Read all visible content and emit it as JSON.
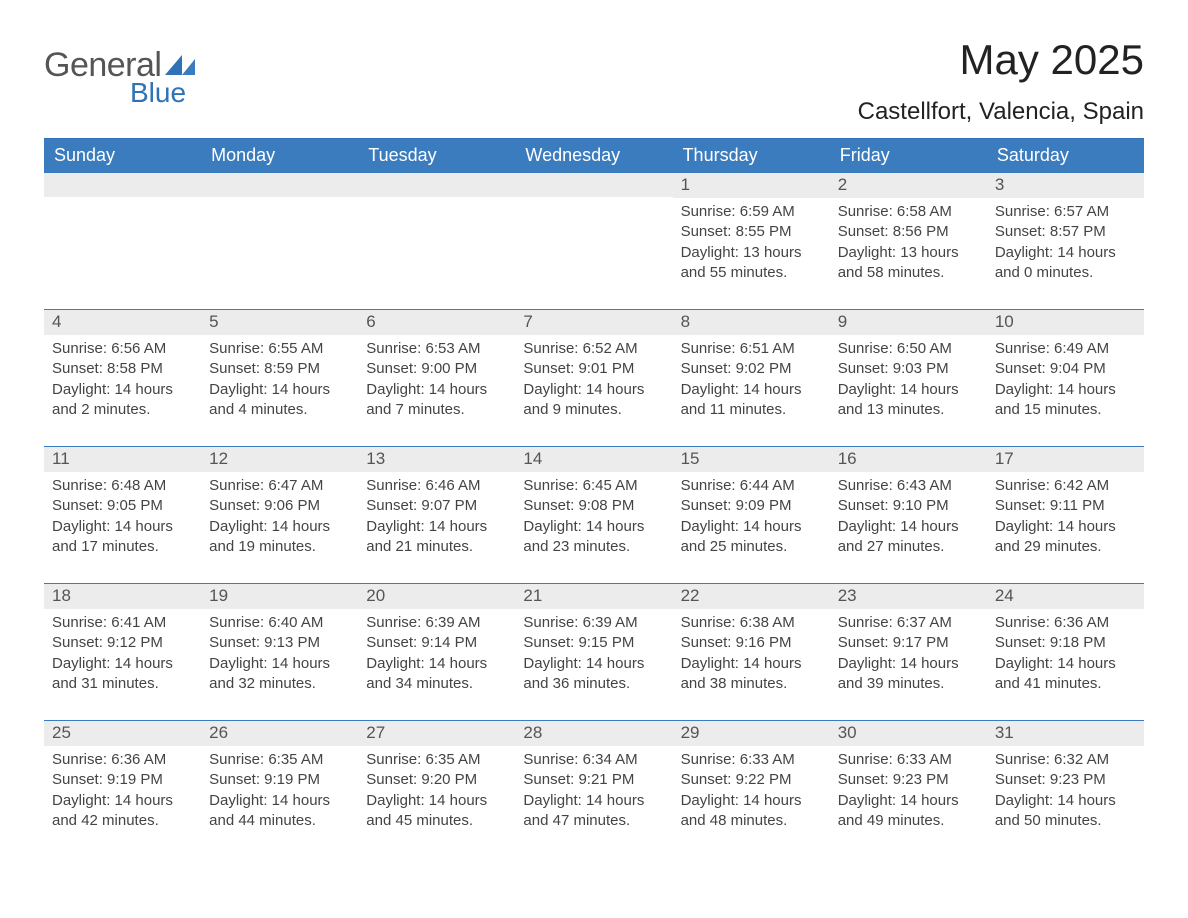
{
  "logo": {
    "word1": "General",
    "word2": "Blue",
    "gray": "#555555",
    "blue": "#2f72b6"
  },
  "title": "May 2025",
  "location": "Castellfort, Valencia, Spain",
  "colors": {
    "header_bg": "#3b7cbf",
    "header_text": "#ffffff",
    "daynum_bg": "#ececec",
    "daynum_text": "#555555",
    "body_text": "#444444",
    "rule": "#3b7cbf",
    "page_bg": "#ffffff"
  },
  "fonts": {
    "title_pt": 42,
    "location_pt": 24,
    "header_pt": 18,
    "daynum_pt": 17,
    "body_pt": 15
  },
  "day_labels": [
    "Sunday",
    "Monday",
    "Tuesday",
    "Wednesday",
    "Thursday",
    "Friday",
    "Saturday"
  ],
  "weeks": [
    [
      {
        "num": "",
        "sunrise": "",
        "sunset": "",
        "day1": "",
        "day2": ""
      },
      {
        "num": "",
        "sunrise": "",
        "sunset": "",
        "day1": "",
        "day2": ""
      },
      {
        "num": "",
        "sunrise": "",
        "sunset": "",
        "day1": "",
        "day2": ""
      },
      {
        "num": "",
        "sunrise": "",
        "sunset": "",
        "day1": "",
        "day2": ""
      },
      {
        "num": "1",
        "sunrise": "Sunrise: 6:59 AM",
        "sunset": "Sunset: 8:55 PM",
        "day1": "Daylight: 13 hours",
        "day2": "and 55 minutes."
      },
      {
        "num": "2",
        "sunrise": "Sunrise: 6:58 AM",
        "sunset": "Sunset: 8:56 PM",
        "day1": "Daylight: 13 hours",
        "day2": "and 58 minutes."
      },
      {
        "num": "3",
        "sunrise": "Sunrise: 6:57 AM",
        "sunset": "Sunset: 8:57 PM",
        "day1": "Daylight: 14 hours",
        "day2": "and 0 minutes."
      }
    ],
    [
      {
        "num": "4",
        "sunrise": "Sunrise: 6:56 AM",
        "sunset": "Sunset: 8:58 PM",
        "day1": "Daylight: 14 hours",
        "day2": "and 2 minutes."
      },
      {
        "num": "5",
        "sunrise": "Sunrise: 6:55 AM",
        "sunset": "Sunset: 8:59 PM",
        "day1": "Daylight: 14 hours",
        "day2": "and 4 minutes."
      },
      {
        "num": "6",
        "sunrise": "Sunrise: 6:53 AM",
        "sunset": "Sunset: 9:00 PM",
        "day1": "Daylight: 14 hours",
        "day2": "and 7 minutes."
      },
      {
        "num": "7",
        "sunrise": "Sunrise: 6:52 AM",
        "sunset": "Sunset: 9:01 PM",
        "day1": "Daylight: 14 hours",
        "day2": "and 9 minutes."
      },
      {
        "num": "8",
        "sunrise": "Sunrise: 6:51 AM",
        "sunset": "Sunset: 9:02 PM",
        "day1": "Daylight: 14 hours",
        "day2": "and 11 minutes."
      },
      {
        "num": "9",
        "sunrise": "Sunrise: 6:50 AM",
        "sunset": "Sunset: 9:03 PM",
        "day1": "Daylight: 14 hours",
        "day2": "and 13 minutes."
      },
      {
        "num": "10",
        "sunrise": "Sunrise: 6:49 AM",
        "sunset": "Sunset: 9:04 PM",
        "day1": "Daylight: 14 hours",
        "day2": "and 15 minutes."
      }
    ],
    [
      {
        "num": "11",
        "sunrise": "Sunrise: 6:48 AM",
        "sunset": "Sunset: 9:05 PM",
        "day1": "Daylight: 14 hours",
        "day2": "and 17 minutes."
      },
      {
        "num": "12",
        "sunrise": "Sunrise: 6:47 AM",
        "sunset": "Sunset: 9:06 PM",
        "day1": "Daylight: 14 hours",
        "day2": "and 19 minutes."
      },
      {
        "num": "13",
        "sunrise": "Sunrise: 6:46 AM",
        "sunset": "Sunset: 9:07 PM",
        "day1": "Daylight: 14 hours",
        "day2": "and 21 minutes."
      },
      {
        "num": "14",
        "sunrise": "Sunrise: 6:45 AM",
        "sunset": "Sunset: 9:08 PM",
        "day1": "Daylight: 14 hours",
        "day2": "and 23 minutes."
      },
      {
        "num": "15",
        "sunrise": "Sunrise: 6:44 AM",
        "sunset": "Sunset: 9:09 PM",
        "day1": "Daylight: 14 hours",
        "day2": "and 25 minutes."
      },
      {
        "num": "16",
        "sunrise": "Sunrise: 6:43 AM",
        "sunset": "Sunset: 9:10 PM",
        "day1": "Daylight: 14 hours",
        "day2": "and 27 minutes."
      },
      {
        "num": "17",
        "sunrise": "Sunrise: 6:42 AM",
        "sunset": "Sunset: 9:11 PM",
        "day1": "Daylight: 14 hours",
        "day2": "and 29 minutes."
      }
    ],
    [
      {
        "num": "18",
        "sunrise": "Sunrise: 6:41 AM",
        "sunset": "Sunset: 9:12 PM",
        "day1": "Daylight: 14 hours",
        "day2": "and 31 minutes."
      },
      {
        "num": "19",
        "sunrise": "Sunrise: 6:40 AM",
        "sunset": "Sunset: 9:13 PM",
        "day1": "Daylight: 14 hours",
        "day2": "and 32 minutes."
      },
      {
        "num": "20",
        "sunrise": "Sunrise: 6:39 AM",
        "sunset": "Sunset: 9:14 PM",
        "day1": "Daylight: 14 hours",
        "day2": "and 34 minutes."
      },
      {
        "num": "21",
        "sunrise": "Sunrise: 6:39 AM",
        "sunset": "Sunset: 9:15 PM",
        "day1": "Daylight: 14 hours",
        "day2": "and 36 minutes."
      },
      {
        "num": "22",
        "sunrise": "Sunrise: 6:38 AM",
        "sunset": "Sunset: 9:16 PM",
        "day1": "Daylight: 14 hours",
        "day2": "and 38 minutes."
      },
      {
        "num": "23",
        "sunrise": "Sunrise: 6:37 AM",
        "sunset": "Sunset: 9:17 PM",
        "day1": "Daylight: 14 hours",
        "day2": "and 39 minutes."
      },
      {
        "num": "24",
        "sunrise": "Sunrise: 6:36 AM",
        "sunset": "Sunset: 9:18 PM",
        "day1": "Daylight: 14 hours",
        "day2": "and 41 minutes."
      }
    ],
    [
      {
        "num": "25",
        "sunrise": "Sunrise: 6:36 AM",
        "sunset": "Sunset: 9:19 PM",
        "day1": "Daylight: 14 hours",
        "day2": "and 42 minutes."
      },
      {
        "num": "26",
        "sunrise": "Sunrise: 6:35 AM",
        "sunset": "Sunset: 9:19 PM",
        "day1": "Daylight: 14 hours",
        "day2": "and 44 minutes."
      },
      {
        "num": "27",
        "sunrise": "Sunrise: 6:35 AM",
        "sunset": "Sunset: 9:20 PM",
        "day1": "Daylight: 14 hours",
        "day2": "and 45 minutes."
      },
      {
        "num": "28",
        "sunrise": "Sunrise: 6:34 AM",
        "sunset": "Sunset: 9:21 PM",
        "day1": "Daylight: 14 hours",
        "day2": "and 47 minutes."
      },
      {
        "num": "29",
        "sunrise": "Sunrise: 6:33 AM",
        "sunset": "Sunset: 9:22 PM",
        "day1": "Daylight: 14 hours",
        "day2": "and 48 minutes."
      },
      {
        "num": "30",
        "sunrise": "Sunrise: 6:33 AM",
        "sunset": "Sunset: 9:23 PM",
        "day1": "Daylight: 14 hours",
        "day2": "and 49 minutes."
      },
      {
        "num": "31",
        "sunrise": "Sunrise: 6:32 AM",
        "sunset": "Sunset: 9:23 PM",
        "day1": "Daylight: 14 hours",
        "day2": "and 50 minutes."
      }
    ]
  ]
}
